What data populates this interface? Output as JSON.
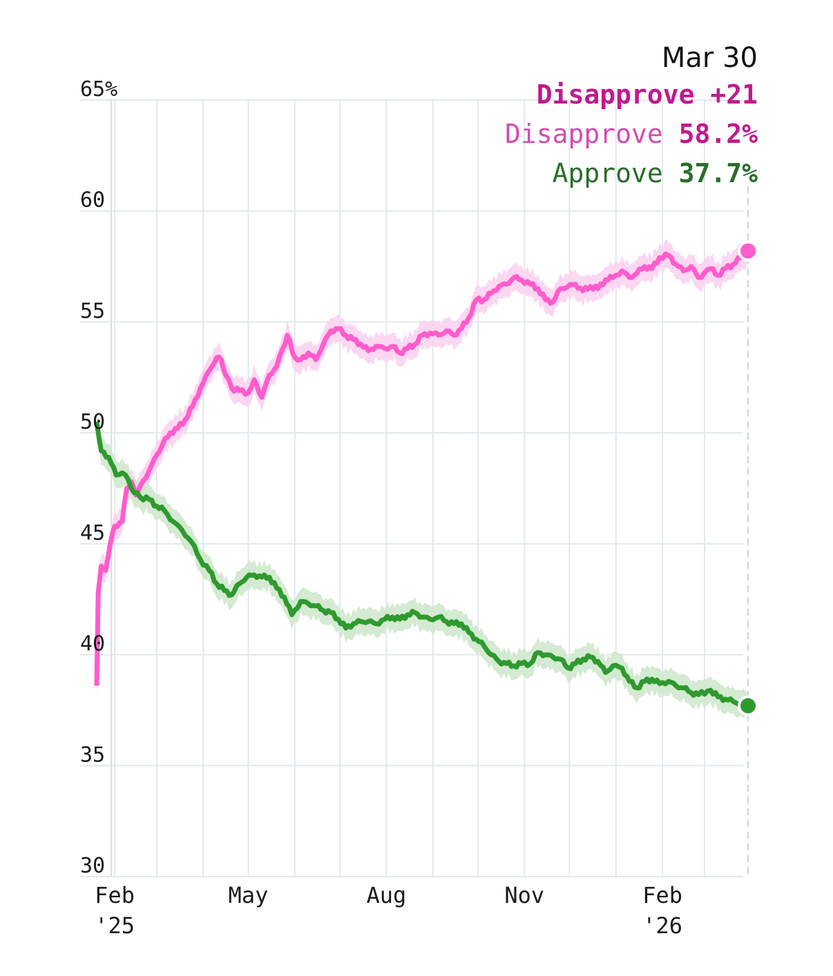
{
  "chart_data": {
    "type": "line",
    "title": "",
    "xlabel": "",
    "ylabel": "",
    "ylim": [
      30,
      65
    ],
    "y_ticks": [
      {
        "value": 65,
        "label": "65%"
      },
      {
        "value": 60,
        "label": "60"
      },
      {
        "value": 55,
        "label": "55"
      },
      {
        "value": 50,
        "label": "50"
      },
      {
        "value": 45,
        "label": "45"
      },
      {
        "value": 40,
        "label": "40"
      },
      {
        "value": 35,
        "label": "35"
      },
      {
        "value": 30,
        "label": "30"
      }
    ],
    "x_range": [
      "2025-01-20",
      "2026-03-30"
    ],
    "x_ticks": [
      {
        "date": "2025-02-01",
        "label": "Feb",
        "sublabel": "'25"
      },
      {
        "date": "2025-05-01",
        "label": "May",
        "sublabel": ""
      },
      {
        "date": "2025-08-01",
        "label": "Aug",
        "sublabel": ""
      },
      {
        "date": "2025-11-01",
        "label": "Nov",
        "sublabel": ""
      },
      {
        "date": "2026-02-01",
        "label": "Feb",
        "sublabel": "'26"
      }
    ],
    "grid": true,
    "legend": {
      "position": "top-right",
      "date": "Mar 30",
      "headline": "Disapprove +21",
      "entries": [
        {
          "name": "Disapprove",
          "value": "58.2%"
        },
        {
          "name": "Approve",
          "value": "37.7%"
        }
      ]
    },
    "series": [
      {
        "name": "Disapprove",
        "color": "#ff5ccc",
        "band_color": "#fbd3ef",
        "label_color": "#c2188f",
        "points": [
          [
            "2025-01-20",
            38.6
          ],
          [
            "2025-01-21",
            42.8
          ],
          [
            "2025-01-23",
            44.0
          ],
          [
            "2025-01-26",
            43.8
          ],
          [
            "2025-01-29",
            45.0
          ],
          [
            "2025-02-01",
            45.8
          ],
          [
            "2025-02-06",
            46.0
          ],
          [
            "2025-02-09",
            47.5
          ],
          [
            "2025-02-12",
            47.8
          ],
          [
            "2025-02-15",
            47.2
          ],
          [
            "2025-02-18",
            47.6
          ],
          [
            "2025-02-24",
            48.3
          ],
          [
            "2025-03-01",
            49.0
          ],
          [
            "2025-03-05",
            49.5
          ],
          [
            "2025-03-10",
            50.0
          ],
          [
            "2025-03-15",
            50.2
          ],
          [
            "2025-03-20",
            50.6
          ],
          [
            "2025-03-25",
            51.2
          ],
          [
            "2025-03-30",
            52.0
          ],
          [
            "2025-04-05",
            52.8
          ],
          [
            "2025-04-10",
            53.4
          ],
          [
            "2025-04-13",
            53.3
          ],
          [
            "2025-04-16",
            52.6
          ],
          [
            "2025-04-20",
            52.0
          ],
          [
            "2025-04-25",
            51.9
          ],
          [
            "2025-05-01",
            51.8
          ],
          [
            "2025-05-05",
            52.4
          ],
          [
            "2025-05-10",
            51.6
          ],
          [
            "2025-05-15",
            52.6
          ],
          [
            "2025-05-20",
            53.0
          ],
          [
            "2025-05-24",
            53.8
          ],
          [
            "2025-05-27",
            54.4
          ],
          [
            "2025-06-01",
            53.4
          ],
          [
            "2025-06-05",
            53.3
          ],
          [
            "2025-06-10",
            53.6
          ],
          [
            "2025-06-15",
            53.3
          ],
          [
            "2025-06-20",
            54.0
          ],
          [
            "2025-06-25",
            54.6
          ],
          [
            "2025-06-30",
            54.7
          ],
          [
            "2025-07-05",
            54.4
          ],
          [
            "2025-07-10",
            54.2
          ],
          [
            "2025-07-15",
            54.0
          ],
          [
            "2025-07-20",
            53.7
          ],
          [
            "2025-07-25",
            53.9
          ],
          [
            "2025-07-31",
            53.8
          ],
          [
            "2025-08-05",
            53.9
          ],
          [
            "2025-08-10",
            53.6
          ],
          [
            "2025-08-15",
            53.8
          ],
          [
            "2025-08-20",
            54.0
          ],
          [
            "2025-08-25",
            54.4
          ],
          [
            "2025-08-30",
            54.5
          ],
          [
            "2025-09-05",
            54.4
          ],
          [
            "2025-09-10",
            54.6
          ],
          [
            "2025-09-15",
            54.4
          ],
          [
            "2025-09-20",
            54.7
          ],
          [
            "2025-09-25",
            55.2
          ],
          [
            "2025-09-30",
            56.0
          ],
          [
            "2025-10-05",
            56.0
          ],
          [
            "2025-10-10",
            56.3
          ],
          [
            "2025-10-15",
            56.6
          ],
          [
            "2025-10-20",
            56.7
          ],
          [
            "2025-10-25",
            57.0
          ],
          [
            "2025-10-30",
            56.9
          ],
          [
            "2025-11-05",
            56.7
          ],
          [
            "2025-11-10",
            56.5
          ],
          [
            "2025-11-15",
            56.0
          ],
          [
            "2025-11-20",
            55.9
          ],
          [
            "2025-11-25",
            56.5
          ],
          [
            "2025-11-30",
            56.6
          ],
          [
            "2025-12-05",
            56.7
          ],
          [
            "2025-12-10",
            56.4
          ],
          [
            "2025-12-15",
            56.6
          ],
          [
            "2025-12-20",
            56.5
          ],
          [
            "2025-12-25",
            56.9
          ],
          [
            "2025-12-30",
            57.0
          ],
          [
            "2026-01-05",
            57.3
          ],
          [
            "2026-01-10",
            57.0
          ],
          [
            "2026-01-15",
            57.2
          ],
          [
            "2026-01-20",
            57.5
          ],
          [
            "2026-01-25",
            57.4
          ],
          [
            "2026-01-30",
            57.9
          ],
          [
            "2026-02-05",
            58.0
          ],
          [
            "2026-02-10",
            57.6
          ],
          [
            "2026-02-15",
            57.3
          ],
          [
            "2026-02-20",
            57.5
          ],
          [
            "2026-02-25",
            57.0
          ],
          [
            "2026-03-05",
            57.4
          ],
          [
            "2026-03-10",
            57.1
          ],
          [
            "2026-03-15",
            57.4
          ],
          [
            "2026-03-20",
            57.6
          ],
          [
            "2026-03-25",
            57.9
          ],
          [
            "2026-03-30",
            58.2
          ]
        ]
      },
      {
        "name": "Approve",
        "color": "#2e9a2e",
        "band_color": "#cfe8cd",
        "label_color": "#2a6e2a",
        "points": [
          [
            "2025-01-20",
            50.5
          ],
          [
            "2025-01-23",
            49.2
          ],
          [
            "2025-01-28",
            48.9
          ],
          [
            "2025-02-02",
            48.1
          ],
          [
            "2025-02-06",
            48.2
          ],
          [
            "2025-02-10",
            47.9
          ],
          [
            "2025-02-14",
            47.3
          ],
          [
            "2025-02-18",
            47.1
          ],
          [
            "2025-02-24",
            47.0
          ],
          [
            "2025-03-01",
            46.7
          ],
          [
            "2025-03-06",
            46.5
          ],
          [
            "2025-03-12",
            46.0
          ],
          [
            "2025-03-18",
            45.6
          ],
          [
            "2025-03-24",
            45.1
          ],
          [
            "2025-03-30",
            44.3
          ],
          [
            "2025-04-05",
            43.8
          ],
          [
            "2025-04-10",
            43.2
          ],
          [
            "2025-04-15",
            42.9
          ],
          [
            "2025-04-20",
            42.7
          ],
          [
            "2025-04-25",
            43.2
          ],
          [
            "2025-04-30",
            43.5
          ],
          [
            "2025-05-05",
            43.6
          ],
          [
            "2025-05-10",
            43.5
          ],
          [
            "2025-05-15",
            43.5
          ],
          [
            "2025-05-20",
            43.0
          ],
          [
            "2025-05-25",
            42.6
          ],
          [
            "2025-05-30",
            41.8
          ],
          [
            "2025-06-05",
            42.4
          ],
          [
            "2025-06-10",
            42.3
          ],
          [
            "2025-06-15",
            42.2
          ],
          [
            "2025-06-20",
            42.0
          ],
          [
            "2025-06-25",
            41.9
          ],
          [
            "2025-06-30",
            41.6
          ],
          [
            "2025-07-05",
            41.2
          ],
          [
            "2025-07-10",
            41.4
          ],
          [
            "2025-07-15",
            41.5
          ],
          [
            "2025-07-20",
            41.5
          ],
          [
            "2025-07-25",
            41.4
          ],
          [
            "2025-07-31",
            41.6
          ],
          [
            "2025-08-05",
            41.7
          ],
          [
            "2025-08-10",
            41.6
          ],
          [
            "2025-08-15",
            41.8
          ],
          [
            "2025-08-20",
            41.9
          ],
          [
            "2025-08-25",
            41.7
          ],
          [
            "2025-08-30",
            41.6
          ],
          [
            "2025-09-05",
            41.7
          ],
          [
            "2025-09-10",
            41.5
          ],
          [
            "2025-09-15",
            41.4
          ],
          [
            "2025-09-20",
            41.4
          ],
          [
            "2025-09-25",
            41.0
          ],
          [
            "2025-09-30",
            40.7
          ],
          [
            "2025-10-05",
            40.4
          ],
          [
            "2025-10-10",
            40.0
          ],
          [
            "2025-10-15",
            39.7
          ],
          [
            "2025-10-20",
            39.6
          ],
          [
            "2025-10-25",
            39.5
          ],
          [
            "2025-10-30",
            39.6
          ],
          [
            "2025-11-05",
            39.6
          ],
          [
            "2025-11-10",
            40.1
          ],
          [
            "2025-11-15",
            40.0
          ],
          [
            "2025-11-20",
            39.9
          ],
          [
            "2025-11-25",
            39.8
          ],
          [
            "2025-11-30",
            39.4
          ],
          [
            "2025-12-05",
            39.6
          ],
          [
            "2025-12-10",
            39.8
          ],
          [
            "2025-12-15",
            39.9
          ],
          [
            "2025-12-20",
            39.7
          ],
          [
            "2025-12-25",
            39.2
          ],
          [
            "2025-12-30",
            39.5
          ],
          [
            "2026-01-05",
            39.4
          ],
          [
            "2026-01-10",
            38.8
          ],
          [
            "2026-01-15",
            38.5
          ],
          [
            "2026-01-20",
            38.8
          ],
          [
            "2026-01-25",
            38.9
          ],
          [
            "2026-01-30",
            38.7
          ],
          [
            "2026-02-05",
            38.8
          ],
          [
            "2026-02-10",
            38.6
          ],
          [
            "2026-02-15",
            38.5
          ],
          [
            "2026-02-20",
            38.3
          ],
          [
            "2026-02-25",
            38.2
          ],
          [
            "2026-03-05",
            38.4
          ],
          [
            "2026-03-10",
            38.1
          ],
          [
            "2026-03-15",
            38.0
          ],
          [
            "2026-03-20",
            37.9
          ],
          [
            "2026-03-25",
            37.8
          ],
          [
            "2026-03-30",
            37.7
          ]
        ]
      }
    ]
  }
}
